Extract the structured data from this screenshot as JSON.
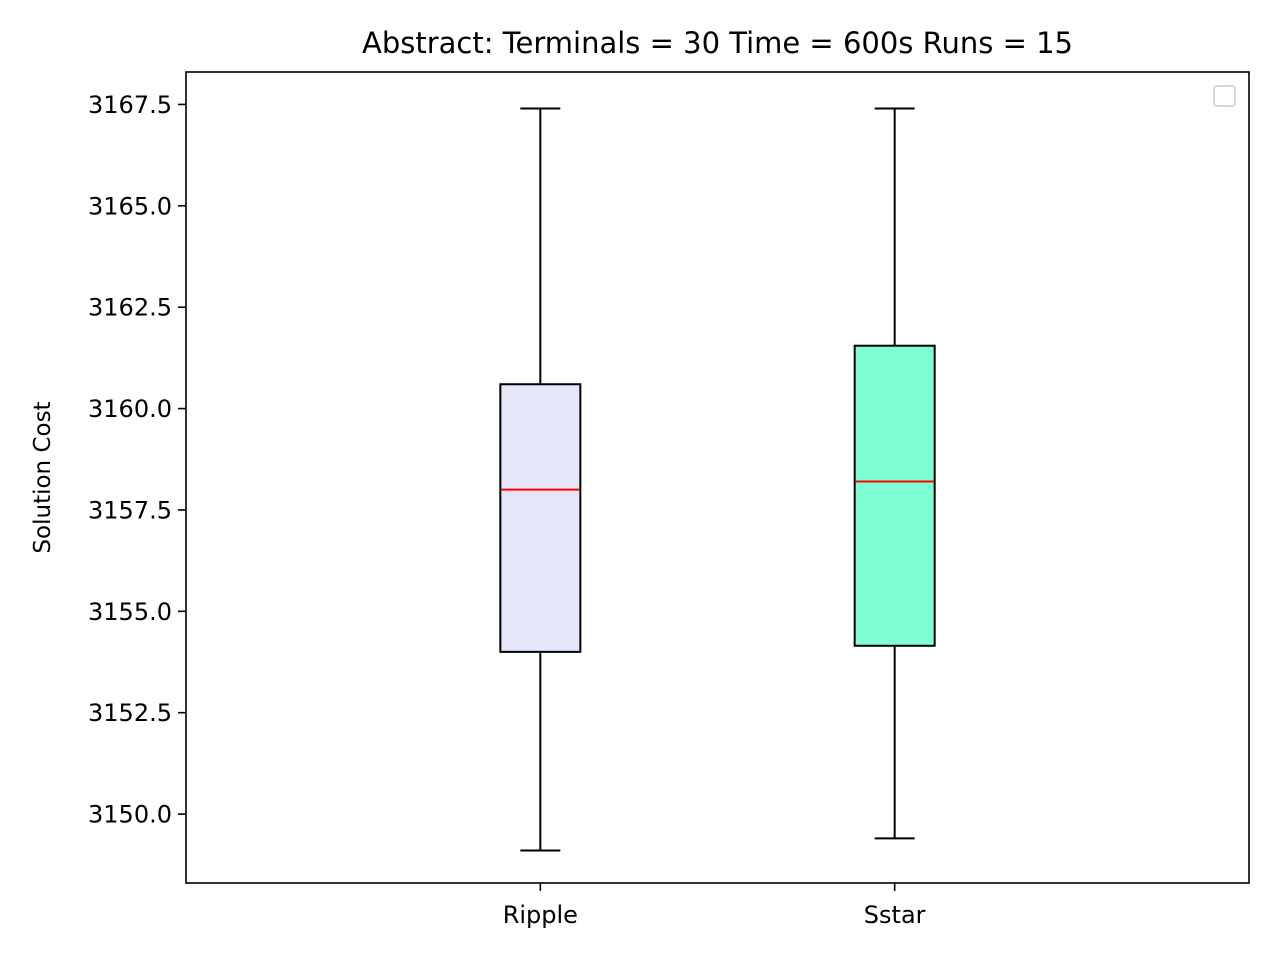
{
  "chart_data": {
    "type": "box",
    "title": "Abstract:  Terminals = 30  Time = 600s  Runs = 15",
    "xlabel": "",
    "ylabel": "Solution Cost",
    "ylim": [
      3148.3,
      3168.3
    ],
    "yticks": [
      3150.0,
      3152.5,
      3155.0,
      3157.5,
      3160.0,
      3162.5,
      3165.0,
      3167.5
    ],
    "ytick_labels": [
      "3150.0",
      "3152.5",
      "3155.0",
      "3157.5",
      "3160.0",
      "3162.5",
      "3165.0",
      "3167.5"
    ],
    "categories": [
      "Ripple",
      "Sstar"
    ],
    "boxes": [
      {
        "name": "Ripple",
        "whislo": 3149.1,
        "q1": 3154.0,
        "med": 3158.0,
        "q3": 3160.6,
        "whishi": 3167.4,
        "color": "#e6e6fa"
      },
      {
        "name": "Sstar",
        "whislo": 3149.4,
        "q1": 3154.15,
        "med": 3158.2,
        "q3": 3161.55,
        "whishi": 3167.4,
        "color": "#7fffd4"
      }
    ],
    "median_color": "#ff0000",
    "legend": {
      "location": "upper right",
      "entries": []
    },
    "grid": false
  }
}
